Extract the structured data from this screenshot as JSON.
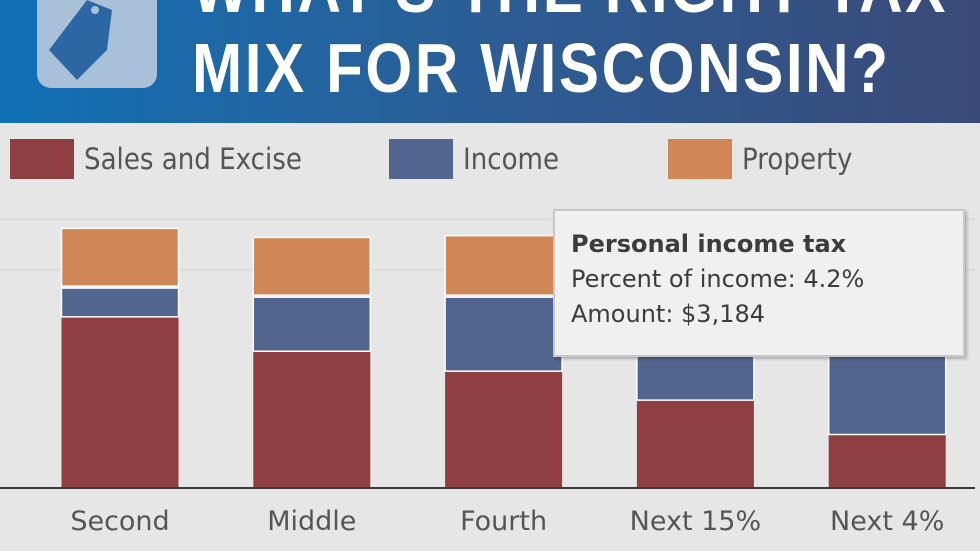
{
  "header": {
    "title_line1": "WHAT'S THE RIGHT TAX",
    "title_line2": "MIX FOR WISCONSIN?",
    "logo_icon": "price-tag-icon"
  },
  "colors": {
    "sales": "#8f3f42",
    "income": "#52658f",
    "property": "#d08657",
    "header_start": "#1170b5",
    "header_end": "#3a4a78"
  },
  "chart_data": {
    "type": "bar",
    "stacked": true,
    "categories": [
      "Second",
      "Middle",
      "Fourth",
      "Next 15%",
      "Next 4%"
    ],
    "series": [
      {
        "name": "Sales and Excise",
        "values": [
          9.4,
          7.5,
          6.4,
          4.8,
          2.9
        ]
      },
      {
        "name": "Income",
        "values": [
          1.7,
          3.1,
          4.2,
          5.3,
          6.0
        ]
      },
      {
        "name": "Property",
        "values": [
          3.3,
          3.3,
          3.4,
          2.8,
          2.2
        ]
      }
    ],
    "ylim": [
      0,
      15
    ],
    "grid": true,
    "legend": "top",
    "tooltip": {
      "title": "Personal income tax",
      "line1": "Percent of income: 4.2%",
      "line2": "Amount: $3,184"
    }
  }
}
